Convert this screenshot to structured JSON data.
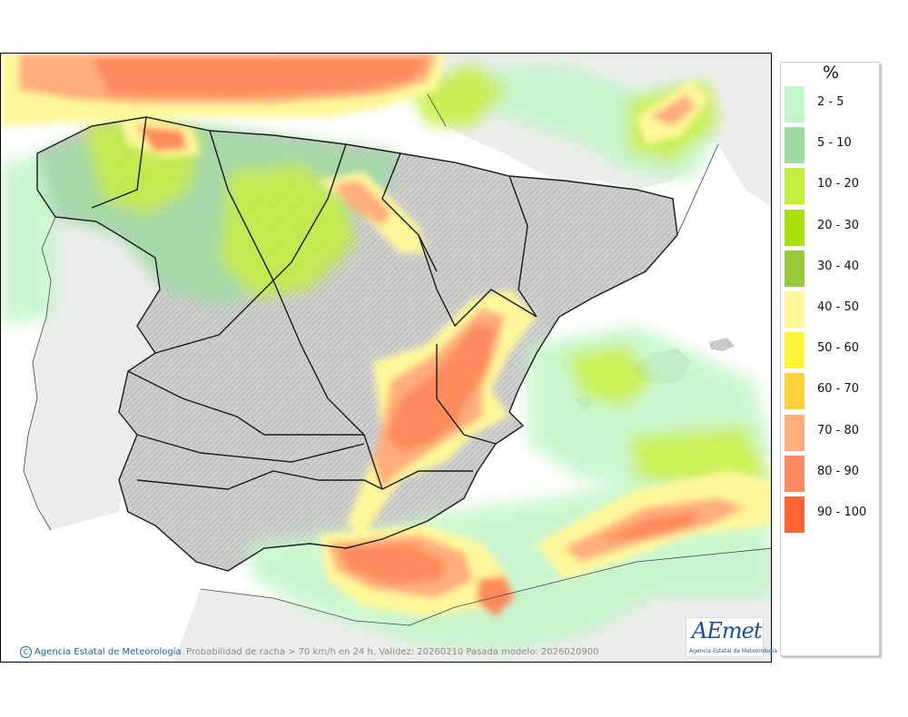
{
  "legend": {
    "unit_title": "%",
    "items": [
      {
        "label": "2 - 5",
        "color": "#c2f5c7"
      },
      {
        "label": "5 - 10",
        "color": "#9fdaa3"
      },
      {
        "label": "10 - 20",
        "color": "#c3ef3c"
      },
      {
        "label": "20 - 30",
        "color": "#a8e10c"
      },
      {
        "label": "30 - 40",
        "color": "#96c93c"
      },
      {
        "label": "40 - 50",
        "color": "#fff79a"
      },
      {
        "label": "50 - 60",
        "color": "#fff23a"
      },
      {
        "label": "60 - 70",
        "color": "#ffd23c"
      },
      {
        "label": "70 - 80",
        "color": "#ffad7c"
      },
      {
        "label": "80 - 90",
        "color": "#ff8a5c"
      },
      {
        "label": "90 - 100",
        "color": "#ff6332"
      }
    ]
  },
  "footer": {
    "copyright_symbol": "C",
    "copyright_text": "Agencia Estatal de Meteorología",
    "caption": "Probabilidad de racha > 70 km/h en 24 h. Validez: 20260210 Pasada modelo: 2026020900"
  },
  "logo": {
    "mark": "AEmet",
    "subtitle": "Agencia Estatal de Meteorología"
  }
}
